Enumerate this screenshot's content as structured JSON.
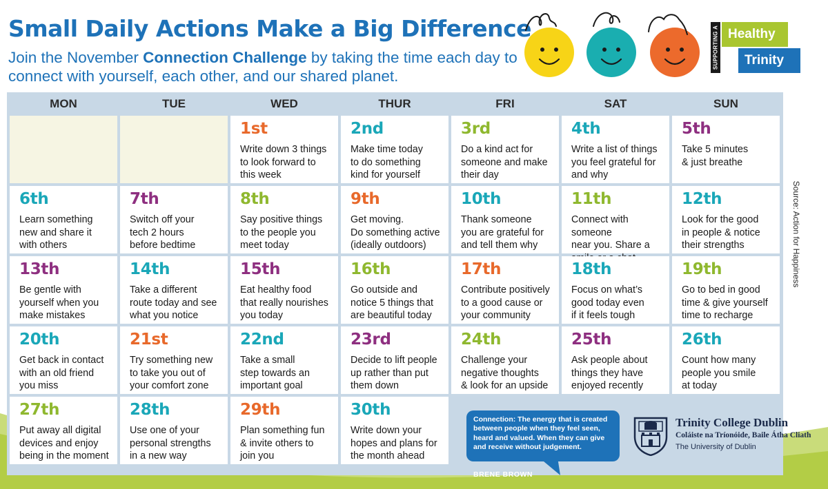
{
  "header": {
    "title": "Small Daily Actions Make a Big Difference",
    "subtitle_pre": "Join the November ",
    "subtitle_bold": "Connection Challenge",
    "subtitle_post": " by taking the time each day to connect with yourself, each other, and our shared planet."
  },
  "badge": {
    "side_text": "SUPPORTING A",
    "top": "Healthy",
    "bottom": "Trinity"
  },
  "faces": [
    {
      "color": "#f7d417"
    },
    {
      "color": "#1aaeb0"
    },
    {
      "color": "#ec6a2c"
    }
  ],
  "days": [
    "MON",
    "TUE",
    "WED",
    "THUR",
    "FRI",
    "SAT",
    "SUN"
  ],
  "weeks": [
    [
      null,
      null,
      {
        "num": "1st",
        "text": "Write down 3 things\nto look forward to\nthis week",
        "color": "#e8692b"
      },
      {
        "num": "2nd",
        "text": "Make time today\nto do something\nkind for yourself",
        "color": "#1aa7b8"
      },
      {
        "num": "3rd",
        "text": "Do a kind act for\nsomeone and make\ntheir day",
        "color": "#8fb82f"
      },
      {
        "num": "4th",
        "text": "Write a list of things\nyou feel grateful for\nand why",
        "color": "#1aa7b8"
      },
      {
        "num": "5th",
        "text": "Take 5 minutes\n& just breathe",
        "color": "#8e2f80"
      }
    ],
    [
      {
        "num": "6th",
        "text": "Learn something\nnew and share it\nwith others",
        "color": "#1aa7b8"
      },
      {
        "num": "7th",
        "text": "Switch off your\ntech 2 hours\nbefore bedtime",
        "color": "#8e2f80"
      },
      {
        "num": "8th",
        "text": "Say positive things\nto the people you\nmeet today",
        "color": "#8fb82f"
      },
      {
        "num": "9th",
        "text": "Get moving.\nDo something active\n(ideally outdoors)",
        "color": "#e8692b"
      },
      {
        "num": "10th",
        "text": "Thank someone\nyou are grateful for\nand tell them why",
        "color": "#1aa7b8"
      },
      {
        "num": "11th",
        "text": "Connect with someone\nnear you. Share a\nsmile or a chat",
        "color": "#8fb82f"
      },
      {
        "num": "12th",
        "text": "Look for the good\nin people & notice\ntheir strengths",
        "color": "#1aa7b8"
      }
    ],
    [
      {
        "num": "13th",
        "text": "Be gentle with\nyourself when you\nmake mistakes",
        "color": "#8e2f80"
      },
      {
        "num": "14th",
        "text": "Take a different\nroute today and see\nwhat you notice",
        "color": "#1aa7b8"
      },
      {
        "num": "15th",
        "text": "Eat healthy food\nthat really nourishes\nyou today",
        "color": "#8e2f80"
      },
      {
        "num": "16th",
        "text": "Go outside and\nnotice 5 things that\nare beautiful today",
        "color": "#8fb82f"
      },
      {
        "num": "17th",
        "text": "Contribute positively\nto a good cause or\nyour community",
        "color": "#e8692b"
      },
      {
        "num": "18th",
        "text": "Focus on what’s\ngood today even\nif it feels tough",
        "color": "#1aa7b8"
      },
      {
        "num": "19th",
        "text": "Go to bed in good\ntime & give yourself\ntime to recharge",
        "color": "#8fb82f"
      }
    ],
    [
      {
        "num": "20th",
        "text": "Get back in contact\nwith an old friend\nyou miss",
        "color": "#1aa7b8"
      },
      {
        "num": "21st",
        "text": "Try something new\nto take you out of\nyour comfort zone",
        "color": "#e8692b"
      },
      {
        "num": "22nd",
        "text": "Take a small\nstep towards an\nimportant goal",
        "color": "#1aa7b8"
      },
      {
        "num": "23rd",
        "text": "Decide to lift people\nup rather than put\nthem down",
        "color": "#8e2f80"
      },
      {
        "num": "24th",
        "text": "Challenge your\nnegative thoughts\n& look for an upside",
        "color": "#8fb82f"
      },
      {
        "num": "25th",
        "text": "Ask people about\nthings they have\nenjoyed recently",
        "color": "#8e2f80"
      },
      {
        "num": "26th",
        "text": "Count how many\npeople you smile\nat today",
        "color": "#1aa7b8"
      }
    ],
    [
      {
        "num": "27th",
        "text": "Put away all digital\ndevices and enjoy\nbeing in the moment",
        "color": "#8fb82f"
      },
      {
        "num": "28th",
        "text": "Use one of your\npersonal strengths\nin a new way",
        "color": "#1aa7b8"
      },
      {
        "num": "29th",
        "text": "Plan something fun\n& invite others to\njoin you",
        "color": "#e8692b"
      },
      {
        "num": "30th",
        "text": "Write down your\nhopes and plans for\nthe month ahead",
        "color": "#1aa7b8"
      }
    ]
  ],
  "quote": {
    "text": "Connection: The energy that is created between people when they feel seen, heard and valued. When they can give and receive without judgement.",
    "author": "BRENE BROWN"
  },
  "tcd": {
    "name": "Trinity College Dublin",
    "irish": "Coláiste na Tríonóide, Baile Átha Cliath",
    "university": "The University of Dublin"
  },
  "source": "Source: Action for Happiness"
}
